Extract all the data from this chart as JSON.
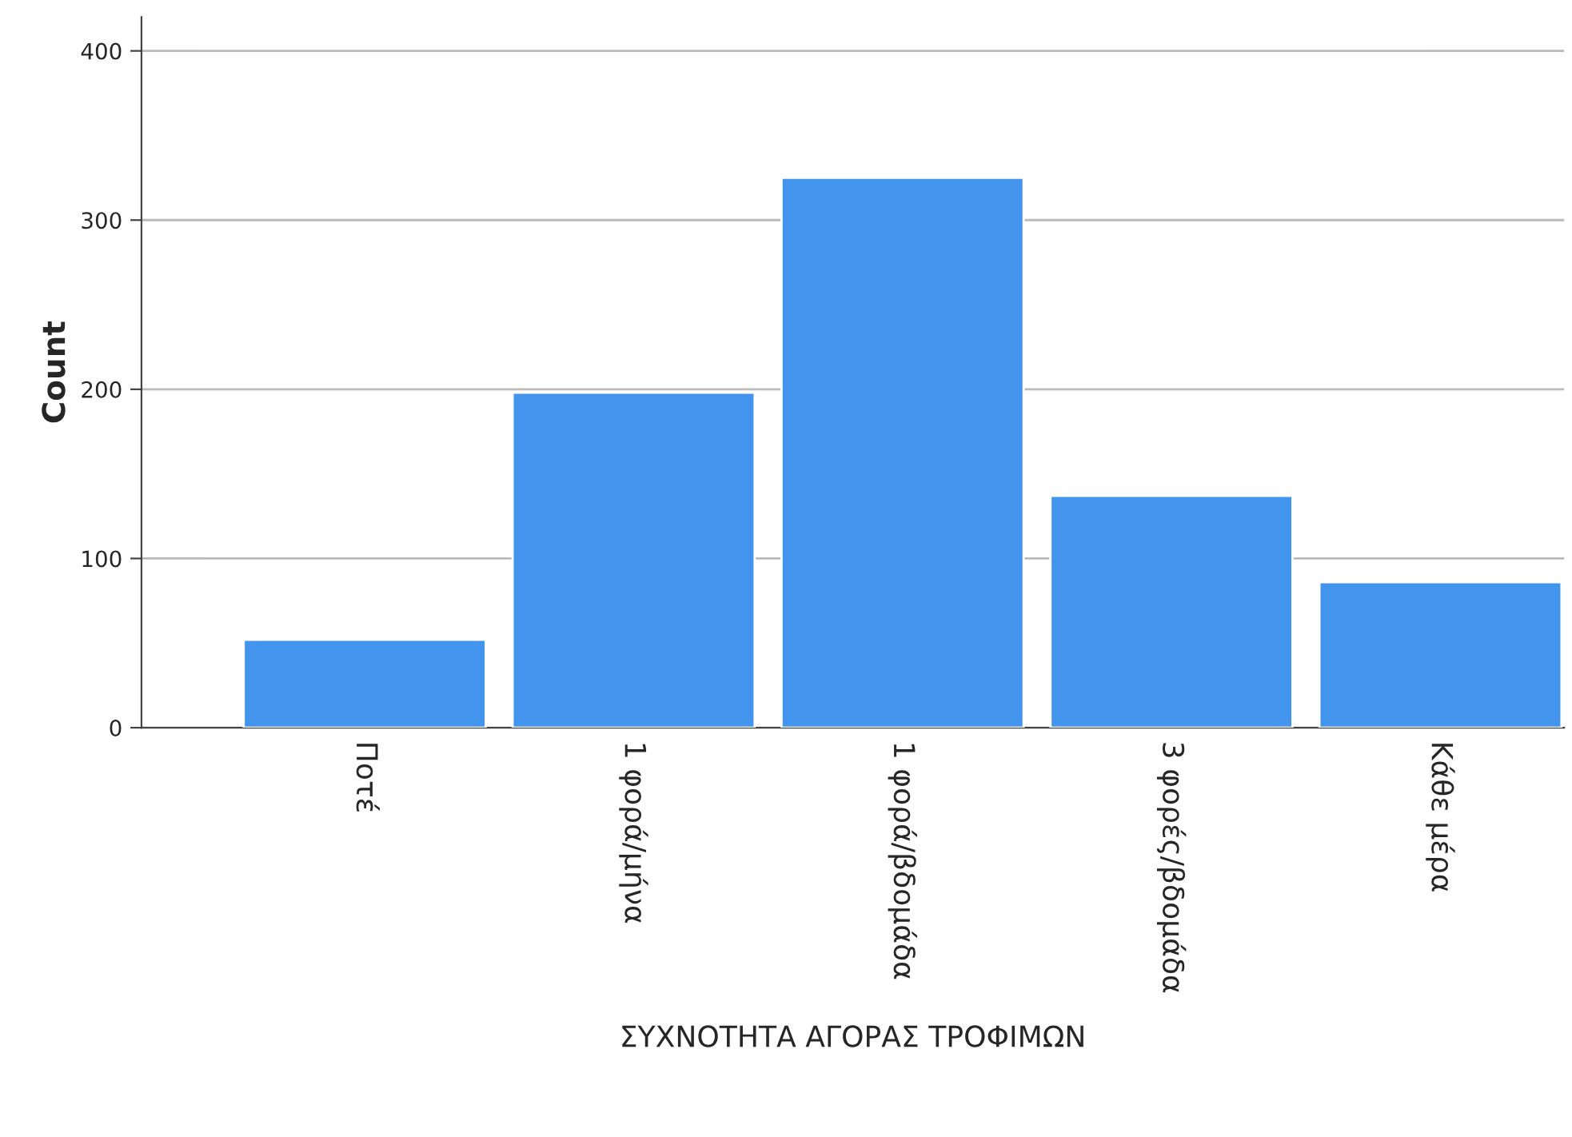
{
  "chart_data": {
    "type": "bar",
    "xlabel": "ΣΥΧΝΟΤΗΤΑ ΑΓΟΡΑΣ ΤΡΟΦΙΜΩΝ",
    "ylabel": "Count",
    "categories": [
      "Ποτέ",
      "1 φορά/μήνα",
      "1 φορά/βδομάδα",
      "3 φορές/βδομάδα",
      "Κάθε μέρα"
    ],
    "values": [
      52,
      198,
      325,
      137,
      86
    ],
    "color": "#4394ec",
    "ylim": [
      0,
      420
    ],
    "yticks": [
      0,
      100,
      200,
      300,
      400
    ],
    "grid": "y"
  }
}
